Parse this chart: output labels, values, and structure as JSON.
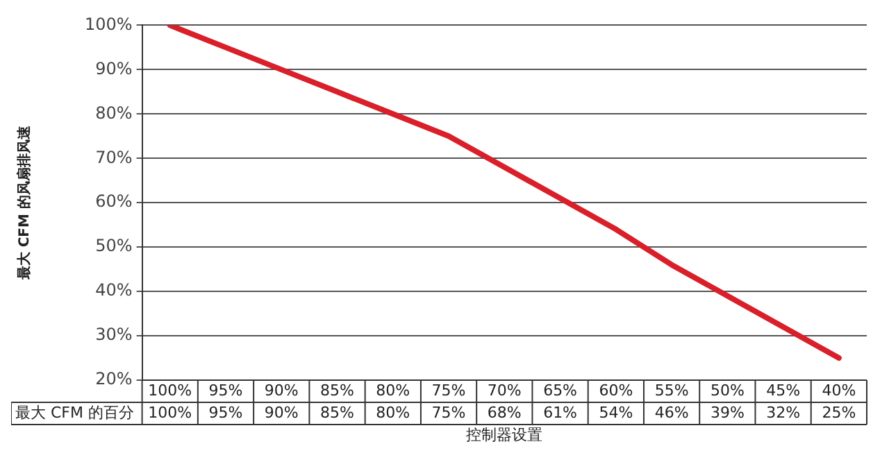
{
  "chart_data": {
    "type": "line",
    "xlabel": "控制器设置",
    "ylabel": "最大 CFM 的风扇排风速",
    "categories": [
      "100%",
      "95%",
      "90%",
      "85%",
      "80%",
      "75%",
      "70%",
      "65%",
      "60%",
      "55%",
      "50%",
      "45%",
      "40%"
    ],
    "series": [
      {
        "name": "最大 CFM 的百分",
        "color": "#d9202a",
        "values": [
          100,
          95,
          90,
          85,
          80,
          75,
          68,
          61,
          54,
          46,
          39,
          32,
          25
        ],
        "value_labels": [
          "100%",
          "95%",
          "90%",
          "85%",
          "80%",
          "75%",
          "68%",
          "61%",
          "54%",
          "46%",
          "39%",
          "32%",
          "25%"
        ]
      }
    ],
    "ylim": [
      20,
      100
    ],
    "yticks": [
      {
        "value": 20,
        "label": "20%"
      },
      {
        "value": 30,
        "label": "30%"
      },
      {
        "value": 40,
        "label": "40%"
      },
      {
        "value": 50,
        "label": "50%"
      },
      {
        "value": 60,
        "label": "60%"
      },
      {
        "value": 70,
        "label": "70%"
      },
      {
        "value": 80,
        "label": "80%"
      },
      {
        "value": 90,
        "label": "90%"
      },
      {
        "value": 100,
        "label": "100%"
      }
    ],
    "grid": "y",
    "legend": false,
    "marker": "none",
    "line_style": "solid"
  }
}
